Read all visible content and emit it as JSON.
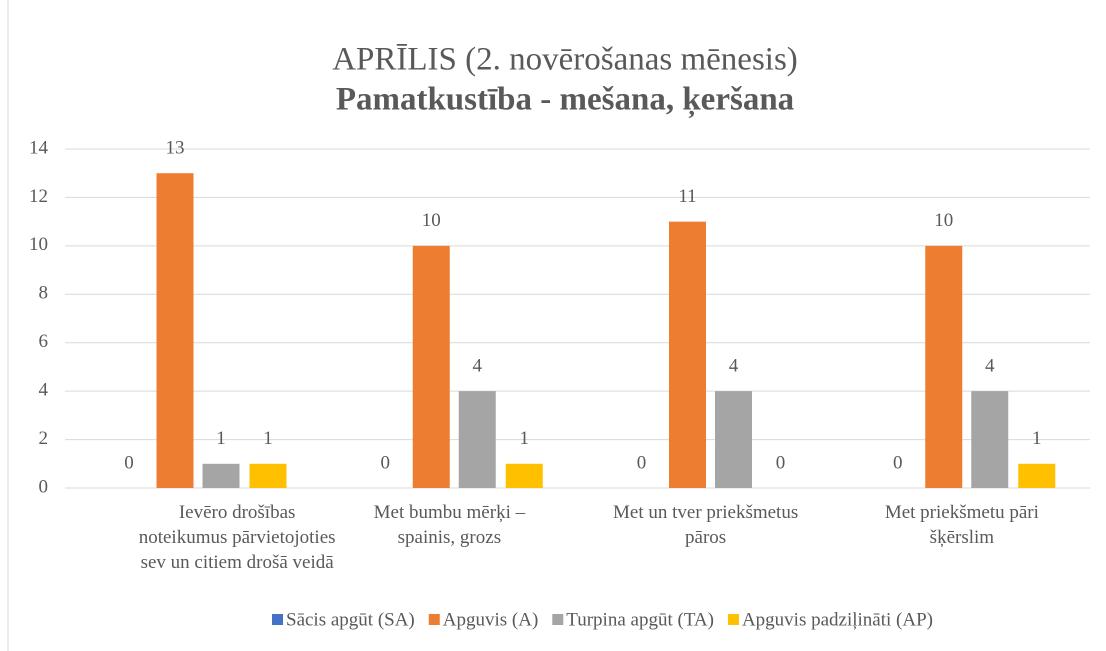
{
  "chart_data": {
    "type": "bar",
    "title": "APRĪLIS (2. novērošanas mēnesis)",
    "subtitle": "Pamatkustība - mešana, ķeršana",
    "categories": [
      [
        "Ievēro drošības",
        "noteikumus pārvietojoties",
        "sev un citiem drošā veidā"
      ],
      [
        "Met bumbu mērķi –",
        "spainis, grozs"
      ],
      [
        "Met un tver priekšmetus",
        "pāros"
      ],
      [
        "Met priekšmetu pāri",
        "šķērslim"
      ]
    ],
    "series": [
      {
        "name": "Sācis apgūt (SA)",
        "color": "#4472c4",
        "values": [
          0,
          0,
          0,
          0
        ]
      },
      {
        "name": "Apguvis (A)",
        "color": "#ed7d31",
        "values": [
          13,
          10,
          11,
          10
        ]
      },
      {
        "name": "Turpina apgūt (TA)",
        "color": "#a5a5a5",
        "values": [
          1,
          4,
          4,
          4
        ]
      },
      {
        "name": "Apguvis padziļināti (AP)",
        "color": "#ffc000",
        "values": [
          1,
          1,
          0,
          1
        ]
      }
    ],
    "ylim": [
      0,
      14
    ],
    "yticks": [
      0,
      2,
      4,
      6,
      8,
      10,
      12,
      14
    ],
    "grid": true,
    "legend": "bottom"
  }
}
